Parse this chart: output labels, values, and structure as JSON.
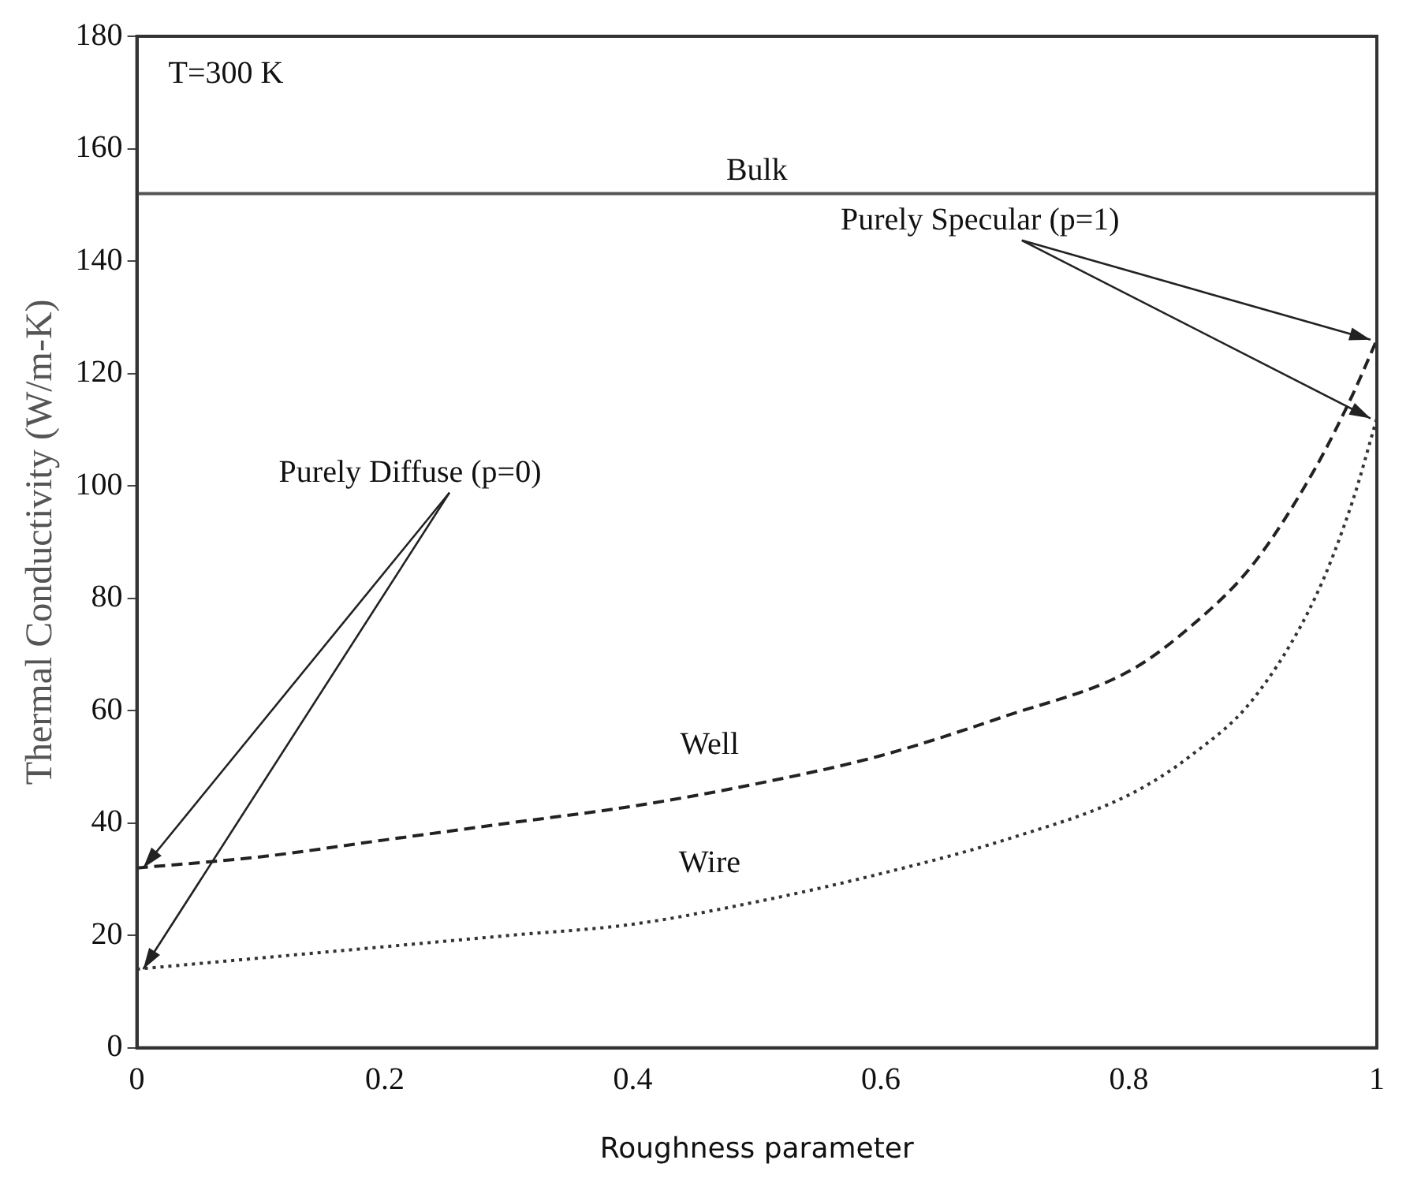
{
  "chart_data": {
    "type": "line",
    "xlabel": "Roughness parameter",
    "ylabel": "Thermal Conductivity (W/m-K)",
    "x": [
      0,
      0.1,
      0.2,
      0.3,
      0.4,
      0.5,
      0.6,
      0.7,
      0.8,
      0.85,
      0.9,
      0.95,
      0.98,
      1
    ],
    "series": [
      {
        "name": "Well",
        "color": "#222222",
        "line_style": "dashed",
        "values": [
          32,
          34,
          37,
          40,
          43,
          47,
          52,
          59,
          67,
          75,
          86,
          103,
          116,
          126
        ]
      },
      {
        "name": "Wire",
        "color": "#333333",
        "line_style": "dotted",
        "values": [
          14,
          16,
          18,
          20,
          22,
          26,
          31,
          37,
          45,
          52,
          62,
          80,
          97,
          112
        ]
      }
    ],
    "xlim": [
      0,
      1
    ],
    "xticks": [
      0,
      {
        "value": 0.2,
        "label": "0.2"
      },
      {
        "value": 0.4,
        "label": "0.4"
      },
      {
        "value": 0.6,
        "label": "0.6"
      },
      {
        "value": 0.8,
        "label": "0.8"
      },
      1
    ],
    "ylim": [
      0,
      180
    ],
    "yticks": [
      0,
      20,
      40,
      60,
      80,
      100,
      120,
      140,
      160,
      180
    ],
    "ref_lines": [
      {
        "axis": "y",
        "value": 152,
        "label": "Bulk",
        "color": "#555555"
      }
    ],
    "annotations": [
      "T=300 K",
      {
        "text": "Purely Specular (p=1)",
        "x": 1,
        "y": 126
      },
      {
        "text": "Purely Diffuse (p=0)",
        "x": 0,
        "y": 32
      }
    ],
    "grid": false,
    "legend": false,
    "marker": "none"
  }
}
